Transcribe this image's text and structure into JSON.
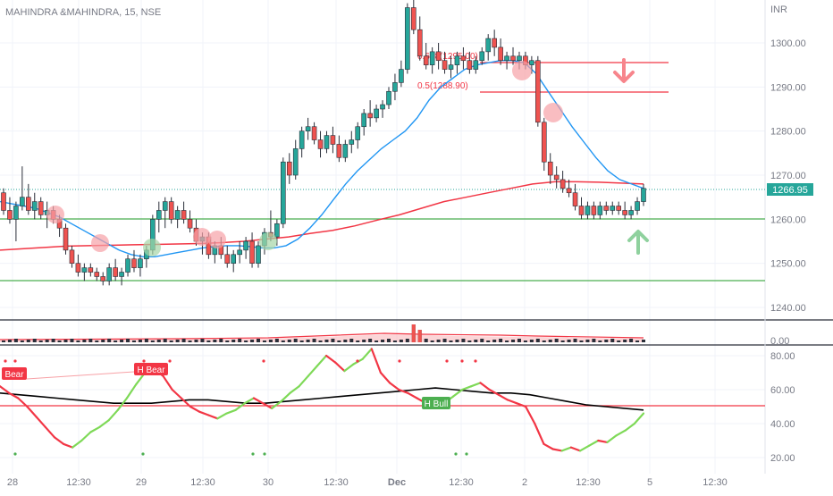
{
  "header": {
    "title": "MAHINDRA &MAHINDRA, 15, NSE"
  },
  "price_axis": {
    "currency": "INR",
    "ticks": [
      "1300.00",
      "1290.00",
      "1280.00",
      "1270.00",
      "1260.00",
      "1250.00",
      "1240.00"
    ],
    "last_price": "1266.95",
    "ylim": [
      1237,
      1310
    ]
  },
  "volume_axis": {
    "tick": "0.00"
  },
  "osc_axis": {
    "ticks": [
      "80.00",
      "60.00",
      "40.00",
      "20.00"
    ],
    "ylim": [
      13,
      86
    ]
  },
  "time_axis": {
    "labels": [
      "28",
      "12:30",
      "29",
      "12:30",
      "30",
      "12:30",
      "Dec",
      "12:30",
      "2",
      "12:30",
      "5",
      "12:30"
    ]
  },
  "fib": {
    "level_618": "0.618(1295.00)",
    "level_5": "0.5(1288.90)"
  },
  "signals": {
    "bear": "Bear",
    "h_bear": "H Bear",
    "h_bull": "H Bull"
  },
  "colors": {
    "up": "#26a69a",
    "down": "#ef5350",
    "ema_fast": "#2196f3",
    "ema_slow": "#f23645",
    "support": "#4caf50",
    "resistance": "#f23645",
    "last_price_bg": "#26a69a"
  },
  "chart_data": [
    {
      "type": "candlestick",
      "title": "MAHINDRA &MAHINDRA, 15, NSE",
      "ylim": [
        1237,
        1310
      ],
      "candles": [
        [
          1266,
          1267,
          1261,
          1262
        ],
        [
          1262,
          1265,
          1259,
          1260
        ],
        [
          1260,
          1264,
          1255,
          1263
        ],
        [
          1263,
          1272,
          1262,
          1265
        ],
        [
          1265,
          1268,
          1261,
          1262
        ],
        [
          1262,
          1266,
          1260,
          1264
        ],
        [
          1264,
          1265,
          1260,
          1261
        ],
        [
          1261,
          1264,
          1258,
          1262
        ],
        [
          1262,
          1263,
          1259,
          1260
        ],
        [
          1260,
          1261,
          1256,
          1258
        ],
        [
          1258,
          1259,
          1252,
          1253
        ],
        [
          1253,
          1254,
          1249,
          1250
        ],
        [
          1250,
          1252,
          1247,
          1248
        ],
        [
          1248,
          1250,
          1246,
          1249
        ],
        [
          1249,
          1250,
          1247,
          1248
        ],
        [
          1248,
          1249,
          1246,
          1247
        ],
        [
          1247,
          1248,
          1245,
          1246
        ],
        [
          1246,
          1250,
          1245,
          1249
        ],
        [
          1249,
          1251,
          1246,
          1247
        ],
        [
          1247,
          1249,
          1245,
          1248
        ],
        [
          1248,
          1252,
          1247,
          1251
        ],
        [
          1251,
          1253,
          1248,
          1249
        ],
        [
          1249,
          1252,
          1247,
          1251
        ],
        [
          1251,
          1254,
          1249,
          1253
        ],
        [
          1253,
          1261,
          1252,
          1260
        ],
        [
          1260,
          1264,
          1257,
          1262
        ],
        [
          1262,
          1265,
          1258,
          1264
        ],
        [
          1264,
          1265,
          1259,
          1260
        ],
        [
          1260,
          1263,
          1258,
          1262
        ],
        [
          1262,
          1264,
          1259,
          1260
        ],
        [
          1260,
          1262,
          1257,
          1258
        ],
        [
          1258,
          1260,
          1254,
          1255
        ],
        [
          1255,
          1257,
          1252,
          1256
        ],
        [
          1256,
          1257,
          1251,
          1252
        ],
        [
          1252,
          1255,
          1250,
          1254
        ],
        [
          1254,
          1256,
          1251,
          1252
        ],
        [
          1252,
          1254,
          1249,
          1250
        ],
        [
          1250,
          1253,
          1248,
          1252
        ],
        [
          1252,
          1255,
          1250,
          1253
        ],
        [
          1253,
          1256,
          1251,
          1255
        ],
        [
          1255,
          1257,
          1249,
          1250
        ],
        [
          1250,
          1255,
          1249,
          1254
        ],
        [
          1254,
          1258,
          1252,
          1257
        ],
        [
          1257,
          1262,
          1255,
          1256
        ],
        [
          1256,
          1260,
          1254,
          1259
        ],
        [
          1259,
          1274,
          1258,
          1273
        ],
        [
          1273,
          1275,
          1268,
          1270
        ],
        [
          1270,
          1278,
          1269,
          1276
        ],
        [
          1276,
          1281,
          1274,
          1280
        ],
        [
          1280,
          1283,
          1278,
          1281
        ],
        [
          1281,
          1282,
          1277,
          1278
        ],
        [
          1278,
          1280,
          1274,
          1276
        ],
        [
          1276,
          1280,
          1275,
          1279
        ],
        [
          1279,
          1281,
          1275,
          1277
        ],
        [
          1277,
          1279,
          1273,
          1274
        ],
        [
          1274,
          1278,
          1273,
          1277
        ],
        [
          1277,
          1280,
          1275,
          1278
        ],
        [
          1278,
          1282,
          1276,
          1281
        ],
        [
          1281,
          1285,
          1279,
          1284
        ],
        [
          1284,
          1287,
          1281,
          1283
        ],
        [
          1283,
          1286,
          1282,
          1285
        ],
        [
          1285,
          1287,
          1283,
          1286
        ],
        [
          1286,
          1290,
          1285,
          1289
        ],
        [
          1289,
          1293,
          1287,
          1291
        ],
        [
          1291,
          1296,
          1290,
          1294
        ],
        [
          1294,
          1309,
          1293,
          1308
        ],
        [
          1308,
          1310,
          1302,
          1303
        ],
        [
          1303,
          1306,
          1296,
          1297
        ],
        [
          1297,
          1300,
          1294,
          1295
        ],
        [
          1295,
          1299,
          1293,
          1298
        ],
        [
          1298,
          1300,
          1294,
          1296
        ],
        [
          1296,
          1298,
          1293,
          1294
        ],
        [
          1294,
          1297,
          1292,
          1295
        ],
        [
          1295,
          1298,
          1293,
          1297
        ],
        [
          1297,
          1299,
          1294,
          1296
        ],
        [
          1296,
          1298,
          1293,
          1294
        ],
        [
          1294,
          1297,
          1293,
          1296
        ],
        [
          1296,
          1299,
          1295,
          1298
        ],
        [
          1298,
          1302,
          1296,
          1301
        ],
        [
          1301,
          1303,
          1297,
          1299
        ],
        [
          1299,
          1301,
          1295,
          1296
        ],
        [
          1296,
          1298,
          1294,
          1297
        ],
        [
          1297,
          1299,
          1295,
          1296
        ],
        [
          1296,
          1298,
          1294,
          1297
        ],
        [
          1297,
          1298,
          1294,
          1295
        ],
        [
          1295,
          1297,
          1293,
          1296
        ],
        [
          1296,
          1297,
          1281,
          1282
        ],
        [
          1282,
          1283,
          1271,
          1273
        ],
        [
          1273,
          1275,
          1268,
          1270
        ],
        [
          1270,
          1272,
          1267,
          1269
        ],
        [
          1269,
          1271,
          1266,
          1267
        ],
        [
          1267,
          1269,
          1265,
          1266
        ],
        [
          1266,
          1268,
          1262,
          1263
        ],
        [
          1263,
          1265,
          1260,
          1261
        ],
        [
          1261,
          1264,
          1260,
          1263
        ],
        [
          1263,
          1264,
          1260,
          1261
        ],
        [
          1261,
          1264,
          1260,
          1263
        ],
        [
          1263,
          1264,
          1261,
          1262
        ],
        [
          1262,
          1264,
          1261,
          1263
        ],
        [
          1263,
          1264,
          1261,
          1262
        ],
        [
          1262,
          1264,
          1260,
          1261
        ],
        [
          1261,
          1263,
          1260,
          1262
        ],
        [
          1262,
          1265,
          1261,
          1264
        ],
        [
          1264,
          1268,
          1263,
          1267
        ]
      ],
      "ema_fast": [
        1264,
        1263.5,
        1263,
        1262.5,
        1261.5,
        1260.5,
        1259,
        1257.5,
        1256,
        1254.5,
        1253,
        1252,
        1251.5,
        1251.5,
        1252,
        1252.5,
        1253,
        1253.5,
        1253.8,
        1254,
        1254,
        1253.8,
        1253.5,
        1253.5,
        1254,
        1255.5,
        1258,
        1261,
        1264.5,
        1268,
        1271,
        1273.5,
        1276,
        1278,
        1280,
        1283,
        1287,
        1290,
        1292,
        1294,
        1295,
        1295.5,
        1296,
        1296,
        1295.5,
        1293,
        1289,
        1285,
        1281,
        1277.5,
        1274,
        1271,
        1269,
        1268,
        1267
      ],
      "ema_slow": [
        1253,
        1253.3,
        1253.6,
        1253.9,
        1254,
        1254.1,
        1254.2,
        1254.3,
        1254.4,
        1254.5,
        1254.7,
        1255,
        1255.5,
        1256,
        1256.8,
        1257.5,
        1258.5,
        1259.8,
        1261,
        1262.5,
        1264,
        1265,
        1266,
        1267,
        1268,
        1268.5,
        1268.5,
        1268.4,
        1268.2,
        1268
      ]
    },
    {
      "type": "line",
      "title": "",
      "ylim": [
        13,
        86
      ],
      "series": [
        {
          "name": "",
          "values": [
            62,
            58,
            55,
            50,
            44,
            38,
            32,
            28,
            26,
            30,
            35,
            38,
            42,
            48,
            55,
            63,
            70,
            72,
            68,
            60,
            55,
            50,
            47,
            45,
            43,
            46,
            48,
            52,
            55,
            52,
            49,
            53,
            58,
            62,
            68,
            74,
            80,
            76,
            71,
            75,
            78,
            84,
            70,
            64,
            60,
            58,
            55,
            52,
            50,
            52,
            56,
            60,
            62,
            64,
            60,
            57,
            54,
            52,
            50,
            40,
            28,
            25,
            24,
            26,
            24,
            27,
            30,
            29,
            33,
            36,
            40,
            46
          ]
        },
        {
          "name": "",
          "values": [
            58,
            57,
            56,
            55,
            54,
            53,
            52,
            52,
            52,
            53,
            54,
            54,
            53,
            52,
            52,
            53,
            54,
            55,
            56,
            57,
            58,
            59,
            60,
            61,
            60,
            59,
            58,
            58,
            57,
            55,
            53,
            51,
            50,
            49,
            48
          ]
        }
      ],
      "hlines": [
        50
      ],
      "annotations": [
        "Bear",
        "H Bear",
        "H Bull"
      ]
    }
  ]
}
